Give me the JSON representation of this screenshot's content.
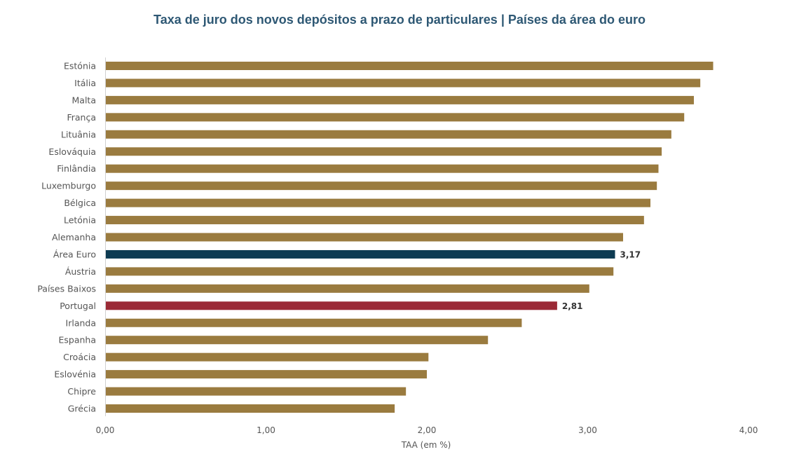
{
  "chart_data": {
    "type": "bar",
    "orientation": "horizontal",
    "title": "Taxa de juro dos novos depósitos a prazo de particulares | Países da área do euro",
    "xlabel": "TAA (em %)",
    "ylabel": "",
    "xlim": [
      0,
      4
    ],
    "xticks": [
      "0,00",
      "1,00",
      "2,00",
      "3,00",
      "4,00"
    ],
    "grid": false,
    "legend": "none",
    "categories": [
      "Estónia",
      "Itália",
      "Malta",
      "França",
      "Lituânia",
      "Eslováquia",
      "Finlândia",
      "Luxemburgo",
      "Bélgica",
      "Letónia",
      "Alemanha",
      "Área Euro",
      "Áustria",
      "Países Baixos",
      "Portugal",
      "Irlanda",
      "Espanha",
      "Croácia",
      "Eslovénia",
      "Chipre",
      "Grécia"
    ],
    "values": [
      3.78,
      3.7,
      3.66,
      3.6,
      3.52,
      3.46,
      3.44,
      3.43,
      3.39,
      3.35,
      3.22,
      3.17,
      3.16,
      3.01,
      2.81,
      2.59,
      2.38,
      2.01,
      2.0,
      1.87,
      1.8
    ],
    "data_labels": {
      "Área Euro": "3,17",
      "Portugal": "2,81"
    },
    "colors": {
      "default": "#9a7b3f",
      "Área Euro": "#0d3b52",
      "Portugal": "#9b2a36"
    }
  }
}
